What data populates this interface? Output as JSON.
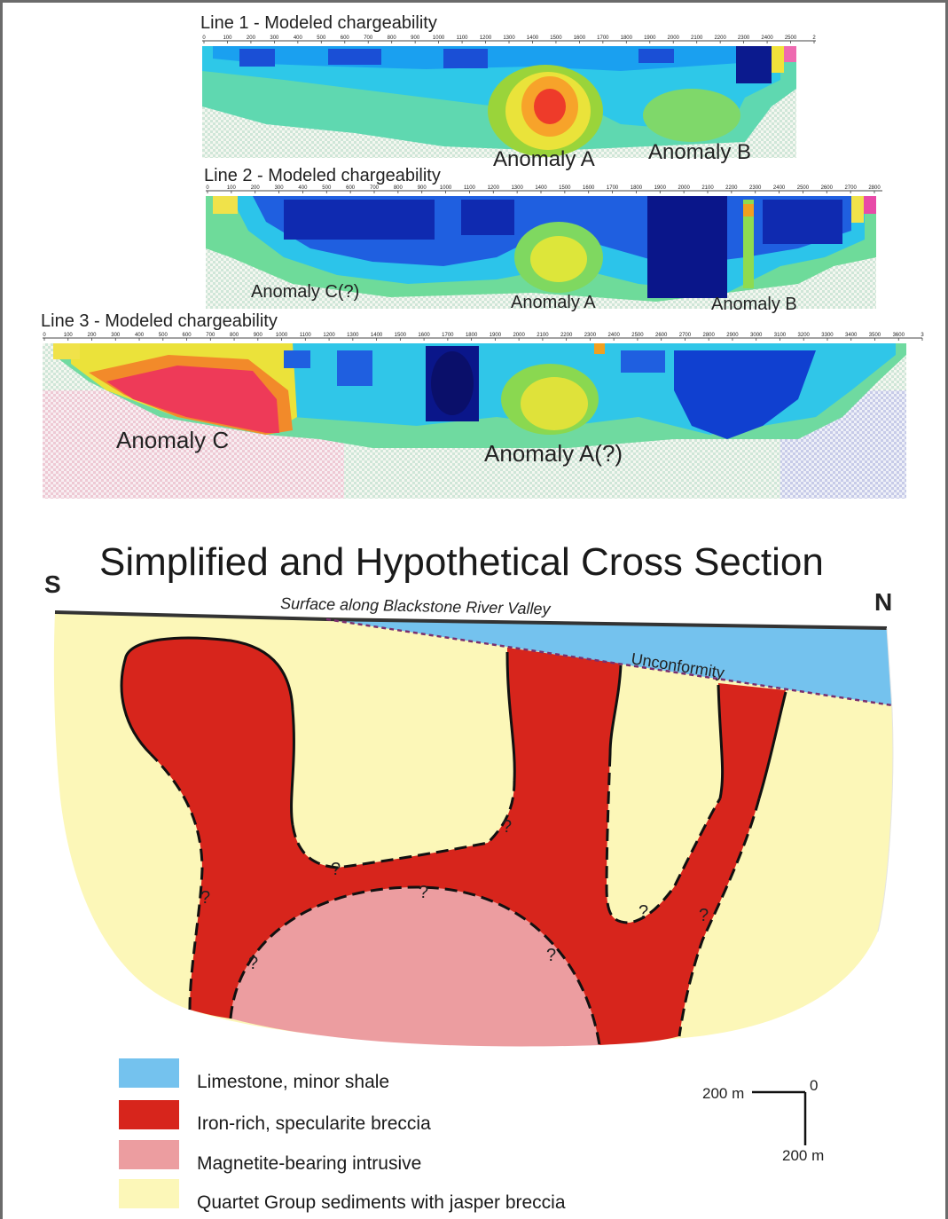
{
  "sections": [
    {
      "title": "Line 1 - Modeled chargeability",
      "ticks": [
        "0",
        "100",
        "200",
        "300",
        "400",
        "500",
        "600",
        "700",
        "800",
        "900",
        "1000",
        "1100",
        "1200",
        "1300",
        "1400",
        "1500",
        "1600",
        "1700",
        "1800",
        "1900",
        "2000",
        "2100",
        "2200",
        "2300",
        "2400",
        "2500",
        "2"
      ],
      "anomalies": [
        "Anomaly A",
        "Anomaly B"
      ]
    },
    {
      "title": "Line 2 - Modeled chargeability",
      "ticks": [
        "0",
        "100",
        "200",
        "300",
        "400",
        "500",
        "600",
        "700",
        "800",
        "900",
        "1000",
        "1100",
        "1200",
        "1300",
        "1400",
        "1500",
        "1600",
        "1700",
        "1800",
        "1900",
        "2000",
        "2100",
        "2200",
        "2300",
        "2400",
        "2500",
        "2600",
        "2700",
        "2800"
      ],
      "anomalies": [
        "Anomaly C(?)",
        "Anomaly A",
        "Anomaly B"
      ]
    },
    {
      "title": "Line 3 - Modeled chargeability",
      "ticks": [
        "0",
        "100",
        "200",
        "300",
        "400",
        "500",
        "600",
        "700",
        "800",
        "900",
        "1000",
        "1100",
        "1200",
        "1300",
        "1400",
        "1500",
        "1600",
        "1700",
        "1800",
        "1900",
        "2000",
        "2100",
        "2200",
        "2300",
        "2400",
        "2500",
        "2600",
        "2700",
        "2800",
        "2900",
        "3000",
        "3100",
        "3200",
        "3300",
        "3400",
        "3500",
        "3600",
        "3"
      ],
      "anomalies": [
        "Anomaly C",
        "Anomaly A(?)"
      ]
    }
  ],
  "cross_section": {
    "title": "Simplified and Hypothetical Cross Section",
    "south": "S",
    "north": "N",
    "surface_label": "Surface along Blackstone River Valley",
    "unconformity_label": "Unconformity",
    "uncertain_mark": "?"
  },
  "legend": [
    {
      "label": "Limestone, minor shale",
      "color": "#74c2ee"
    },
    {
      "label": "Iron-rich, specularite breccia",
      "color": "#d7251c"
    },
    {
      "label": "Magnetite-bearing intrusive",
      "color": "#ec9da0"
    },
    {
      "label": "Quartet Group sediments with jasper breccia",
      "color": "#fcf7b8"
    }
  ],
  "scale": {
    "horizontal": "200 m",
    "zero": "0",
    "vertical": "200 m"
  }
}
